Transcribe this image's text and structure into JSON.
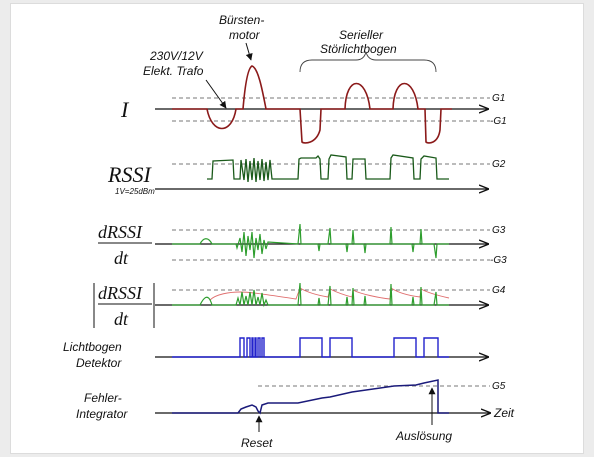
{
  "annotations": {
    "trafo_line1": "230V/12V",
    "trafo_line2": "Elekt. Trafo",
    "motor_line1": "Bürsten-",
    "motor_line2": "motor",
    "serial_line1": "Serieller",
    "serial_line2": "Störlichtbogen",
    "reset": "Reset",
    "trigger": "Auslösung",
    "time_axis": "Zeit"
  },
  "signals": [
    {
      "id": "current",
      "label": "I"
    },
    {
      "id": "rssi",
      "label": "RSSI",
      "sublabel": "1V=25dBm"
    },
    {
      "id": "drssi",
      "numerator": "dRSSI",
      "denominator": "dt"
    },
    {
      "id": "abs_drssi",
      "numerator": "dRSSI",
      "denominator": "dt"
    },
    {
      "id": "detector",
      "label_line1": "Lichtbogen",
      "label_line2": "Detektor"
    },
    {
      "id": "integrator",
      "label_line1": "Fehler-",
      "label_line2": "Integrator"
    }
  ],
  "thresholds": {
    "g1": "G1",
    "g1_neg": "-G1",
    "g2": "G2",
    "g3": "G3",
    "g3_neg": "-G3",
    "g4": "G4",
    "g5": "G5"
  },
  "colors": {
    "current": "#8b1a1a",
    "rssi": "#1a5a1a",
    "derivative": "#2e9e2e",
    "envelope": "#e07070",
    "detector": "#2222cc",
    "integrator": "#1a1a7a"
  }
}
